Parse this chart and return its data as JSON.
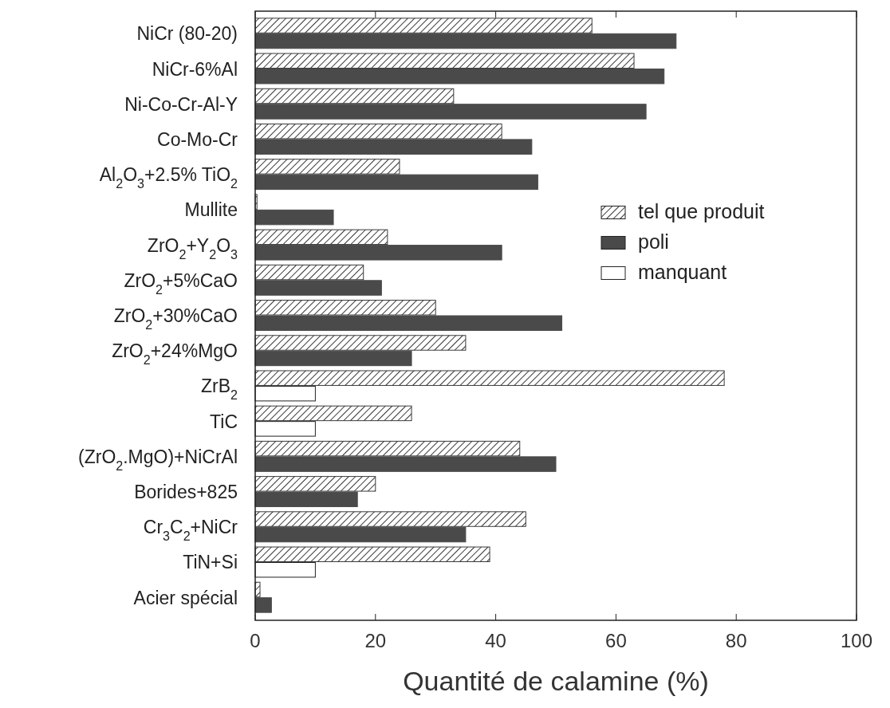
{
  "chart_data": {
    "type": "bar",
    "orientation": "horizontal",
    "xlabel": "Quantité de calamine (%)",
    "categories": [
      "NiCr (80-20)",
      "NiCr-6%Al",
      "Ni-Co-Cr-Al-Y",
      "Co-Mo-Cr",
      "Al$_{2}$O$_{3}$+2.5% TiO$_{2}$",
      "Mullite",
      "ZrO$_{2}$+Y$_{2}$O$_{3}$",
      "ZrO$_{2}$+5%CaO",
      "ZrO$_{2}$+30%CaO",
      "ZrO$_{2}$+24%MgO",
      "ZrB$_{2}$",
      "TiC",
      "(ZrO$_{2}$.MgO)+NiCrAl",
      "Borides+825",
      "Cr$_{3}$C$_{2}$+NiCr",
      "TiN+Si",
      "Acier spécial"
    ],
    "series": [
      {
        "name": "tel que produit",
        "color": "#3a3a3a",
        "values": [
          56,
          63,
          33,
          41,
          24,
          0.3,
          22,
          18,
          30,
          35,
          78,
          26,
          44,
          20,
          45,
          39,
          0.8
        ]
      },
      {
        "name": "poli",
        "color": "#4a4a4a",
        "values": [
          70,
          68,
          65,
          46,
          47,
          13,
          41,
          21,
          51,
          26,
          null,
          null,
          50,
          17,
          35,
          null,
          2.7
        ]
      },
      {
        "name": "manquant",
        "color": "#ffffff",
        "values": [
          null,
          null,
          null,
          null,
          null,
          null,
          null,
          null,
          null,
          null,
          10,
          10,
          null,
          null,
          null,
          10,
          null
        ]
      }
    ],
    "xlim": [
      0,
      100
    ],
    "xticks": [
      0,
      20,
      40,
      60,
      80,
      100
    ],
    "legend": "right"
  }
}
